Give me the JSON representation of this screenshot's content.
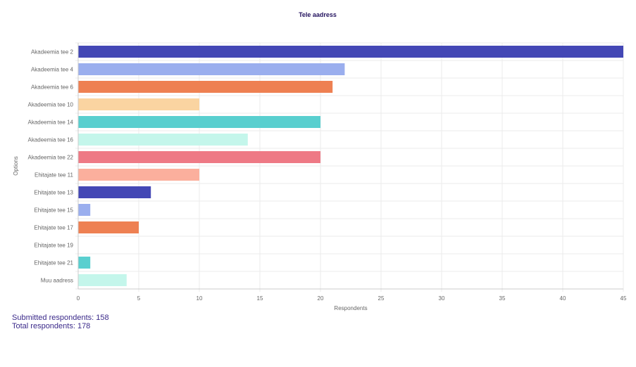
{
  "chart_data": {
    "type": "bar",
    "orientation": "horizontal",
    "title": "Tele aadress",
    "xlabel": "Respondents",
    "ylabel": "Options",
    "xlim": [
      0,
      45
    ],
    "xticks": [
      0,
      5,
      10,
      15,
      20,
      25,
      30,
      35,
      40,
      45
    ],
    "grid": true,
    "legend": "none",
    "categories": [
      "Akadeemia tee 2",
      "Akadeemia tee 4",
      "Akadeemia tee 6",
      "Akadeemia tee 10",
      "Akadeemia tee 14",
      "Akadeemia tee 16",
      "Akadeemia tee 22",
      "Ehitajate tee 11",
      "Ehitajate tee 13",
      "Ehitajate tee 15",
      "Ehitajate tee 17",
      "Ehitajate tee 19",
      "Ehitajate tee 21",
      "Muu aadress"
    ],
    "values": [
      45,
      22,
      21,
      10,
      20,
      14,
      20,
      10,
      6,
      1,
      5,
      0,
      1,
      4
    ],
    "colors": [
      "#4347b5",
      "#9aaeee",
      "#ee8052",
      "#fad4a1",
      "#59cfcf",
      "#c4f6eb",
      "#ee7985",
      "#fbaf9d",
      "#4347b5",
      "#9aaeee",
      "#ee8052",
      "#fad4a1",
      "#59cfcf",
      "#c4f6eb"
    ]
  },
  "footer": {
    "submitted": "Submitted respondents: 158",
    "total": "Total respondents: 178"
  }
}
